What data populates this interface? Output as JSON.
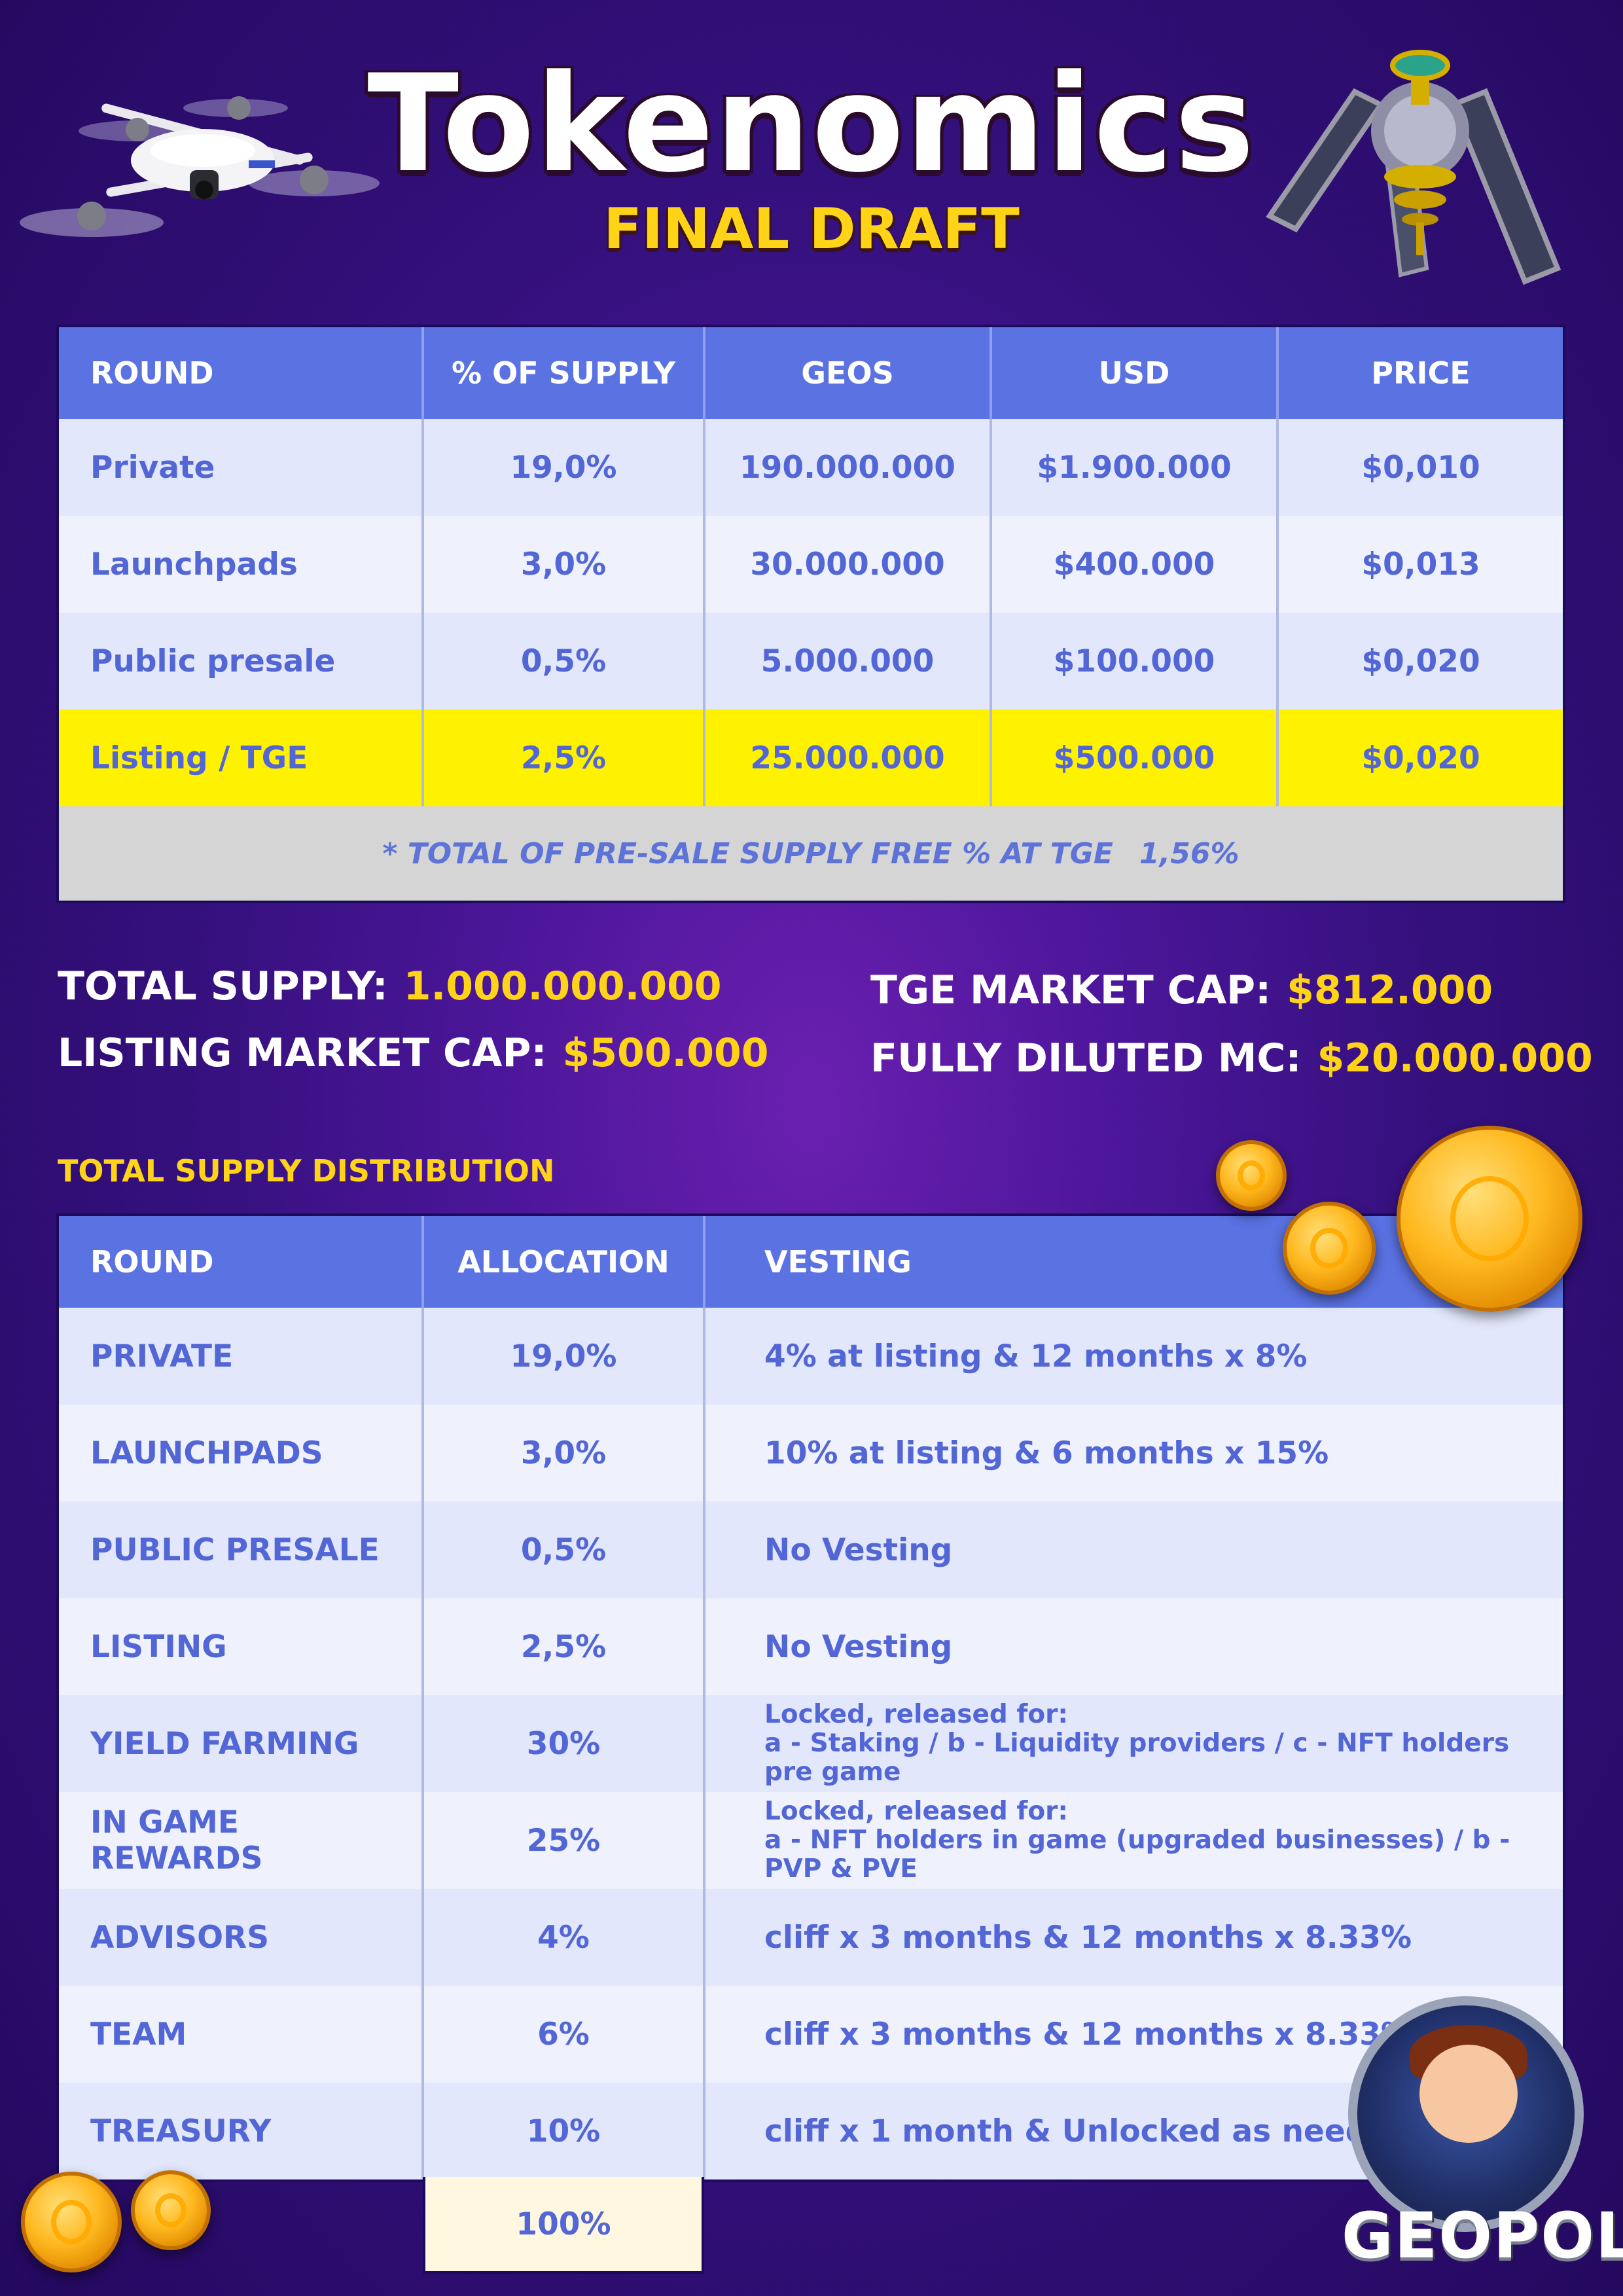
{
  "header": {
    "title": "Tokenomics",
    "subtitle": "FINAL DRAFT"
  },
  "round_table": {
    "columns": [
      "ROUND",
      "% OF SUPPLY",
      "GEOS",
      "USD",
      "PRICE"
    ],
    "rows": [
      [
        "Private",
        "19,0%",
        "190.000.000",
        "$1.900.000",
        "$0,010"
      ],
      [
        "Launchpads",
        "3,0%",
        "30.000.000",
        "$400.000",
        "$0,013"
      ],
      [
        "Public presale",
        "0,5%",
        "5.000.000",
        "$100.000",
        "$0,020"
      ],
      [
        "Listing / TGE",
        "2,5%",
        "25.000.000",
        "$500.000",
        "$0,020"
      ]
    ],
    "highlight_color": "#fff200",
    "footnote_label": "* TOTAL OF PRE-SALE SUPPLY FREE % AT TGE",
    "footnote_value": "1,56%"
  },
  "stats": {
    "total_supply_label": "TOTAL SUPPLY:",
    "total_supply_value": "1.000.000.000",
    "listing_mc_label": "LISTING MARKET CAP:",
    "listing_mc_value": "$500.000",
    "tge_mc_label": "TGE MARKET CAP:",
    "tge_mc_value": "$812.000",
    "fdmc_label": "FULLY DILUTED MC:",
    "fdmc_value": "$20.000.000"
  },
  "distribution": {
    "section_label": "TOTAL SUPPLY DISTRIBUTION",
    "columns": [
      "ROUND",
      "ALLOCATION",
      "VESTING"
    ],
    "rows": [
      {
        "round": "PRIVATE",
        "allocation": "19,0%",
        "vesting": "4% at listing & 12 months x 8%"
      },
      {
        "round": "LAUNCHPADS",
        "allocation": "3,0%",
        "vesting": "10% at listing & 6 months x 15%"
      },
      {
        "round": "PUBLIC PRESALE",
        "allocation": "0,5%",
        "vesting": "No Vesting"
      },
      {
        "round": "LISTING",
        "allocation": "2,5%",
        "vesting": "No Vesting"
      },
      {
        "round": "YIELD FARMING",
        "allocation": "30%",
        "vesting_line1": "Locked, released for:",
        "vesting_line2": "a - Staking / b - Liquidity providers / c - NFT holders pre game"
      },
      {
        "round": "IN GAME REWARDS",
        "allocation": "25%",
        "vesting_line1": "Locked, released for:",
        "vesting_line2": "a - NFT holders in game (upgraded businesses) / b - PVP & PVE"
      },
      {
        "round": "ADVISORS",
        "allocation": "4%",
        "vesting": "cliff x 3 months & 12 months x 8.33%"
      },
      {
        "round": "TEAM",
        "allocation": "6%",
        "vesting": "cliff x 3 months & 12 months x 8.33%"
      },
      {
        "round": "TREASURY",
        "allocation": "10%",
        "vesting": "cliff x 1 month & Unlocked as needed"
      }
    ],
    "total_allocation": "100%"
  },
  "brand": {
    "logo": "GEOPOLY",
    "accent": "#ffd418",
    "header_blue": "#5a72e2"
  },
  "icons": [
    "drone-icon",
    "satellite-icon",
    "coin-icon",
    "mascot-icon"
  ]
}
